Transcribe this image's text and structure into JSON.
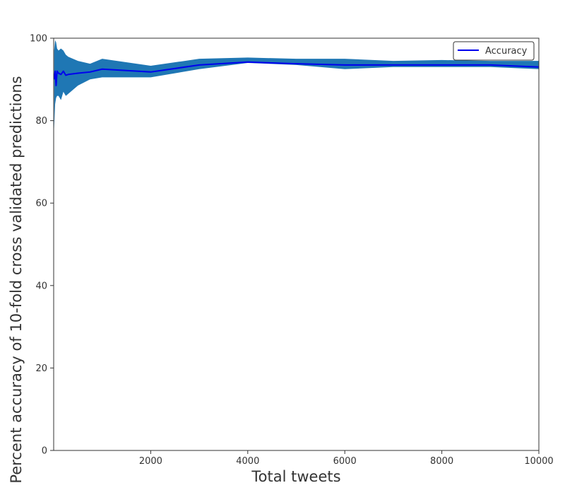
{
  "chart_data": {
    "type": "line",
    "title": "",
    "xlabel": "Total tweets",
    "ylabel": "Percent accuracy of 10-fold cross validated predictions",
    "xlim": [
      0,
      10000
    ],
    "ylim": [
      0,
      100
    ],
    "xticks": [
      2000,
      4000,
      6000,
      8000,
      10000
    ],
    "yticks": [
      0,
      20,
      40,
      60,
      80,
      100
    ],
    "grid": false,
    "legend_position": "top-right",
    "colors": {
      "line": "#0000ee",
      "band": "#1f77b4",
      "axes": "#333333"
    },
    "series": [
      {
        "name": "Accuracy",
        "x": [
          10,
          30,
          50,
          70,
          100,
          150,
          200,
          250,
          300,
          500,
          750,
          1000,
          2000,
          3000,
          4000,
          5000,
          6000,
          7000,
          8000,
          9000,
          10000
        ],
        "y": [
          90.0,
          92.0,
          88.5,
          92.0,
          91.5,
          91.2,
          92.0,
          91.0,
          91.2,
          91.5,
          91.8,
          92.5,
          91.8,
          93.5,
          94.2,
          93.8,
          93.5,
          93.5,
          93.5,
          93.5,
          93.0
        ],
        "lower": [
          78.0,
          84.0,
          85.5,
          86.0,
          86.0,
          85.0,
          87.0,
          86.0,
          86.5,
          88.5,
          90.0,
          90.5,
          90.5,
          92.5,
          94.0,
          93.5,
          92.5,
          93.0,
          93.0,
          93.0,
          92.5
        ],
        "upper": [
          97.0,
          99.5,
          99.0,
          97.5,
          97.0,
          97.5,
          97.0,
          96.0,
          95.5,
          94.5,
          93.8,
          95.0,
          93.3,
          95.0,
          95.3,
          95.0,
          95.0,
          94.5,
          94.7,
          94.5,
          94.5
        ]
      }
    ]
  }
}
